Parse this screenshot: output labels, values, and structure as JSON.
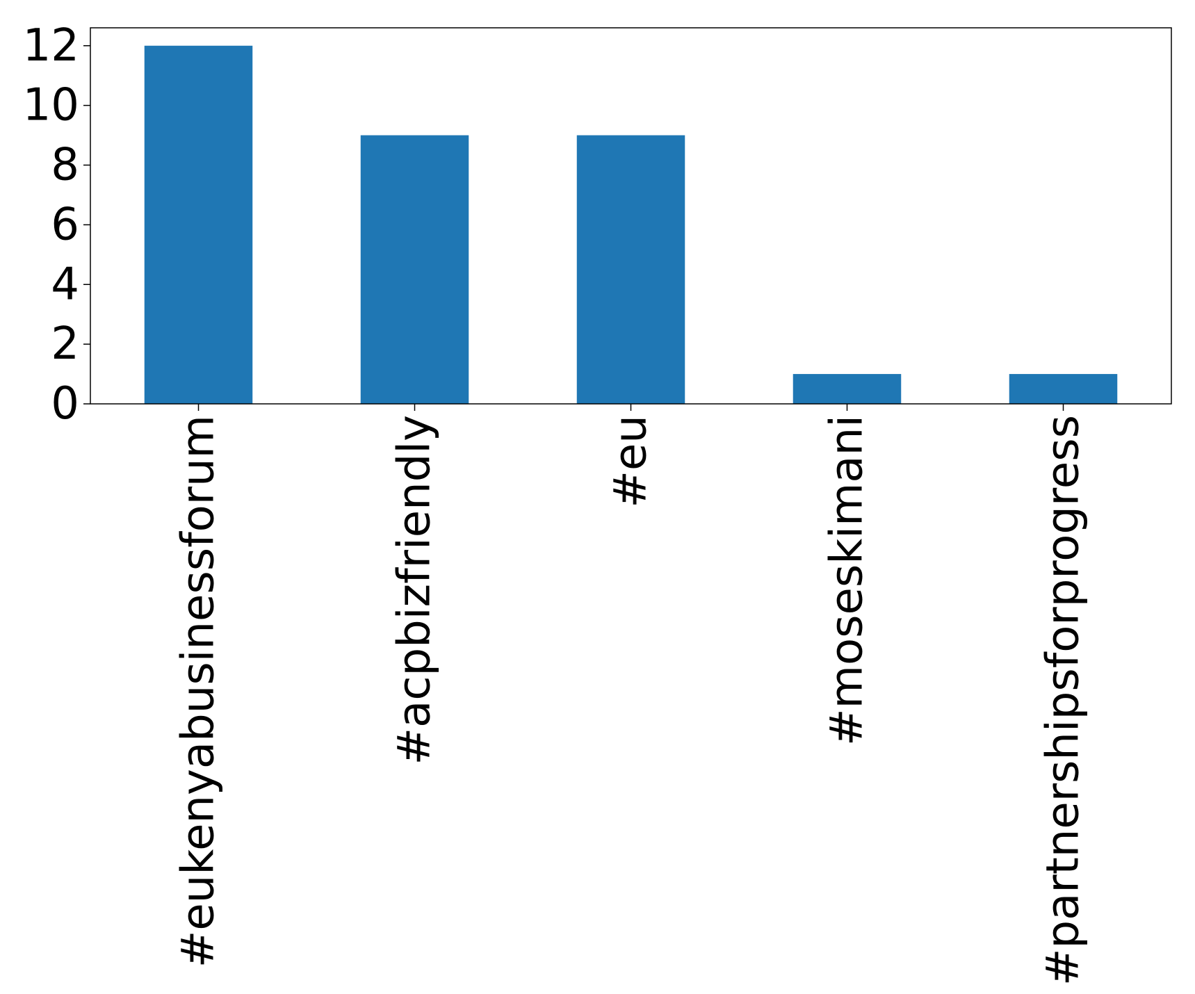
{
  "chart_data": {
    "type": "bar",
    "title": "",
    "xlabel": "",
    "ylabel": "",
    "categories": [
      "#eukenyabusinessforum",
      "#acpbizfriendly",
      "#eu",
      "#moseskimani",
      "#partnershipsforprogress"
    ],
    "values": [
      12,
      9,
      9,
      1,
      1
    ],
    "ylim": [
      0,
      12.6
    ],
    "yticks": [
      0,
      2,
      4,
      6,
      8,
      10,
      12
    ],
    "ytick_labels": [
      "0",
      "2",
      "4",
      "6",
      "8",
      "10",
      "12"
    ],
    "grid": false,
    "legend": "none",
    "bar_color": "#1f77b4",
    "xtick_rotation": "vertical"
  }
}
